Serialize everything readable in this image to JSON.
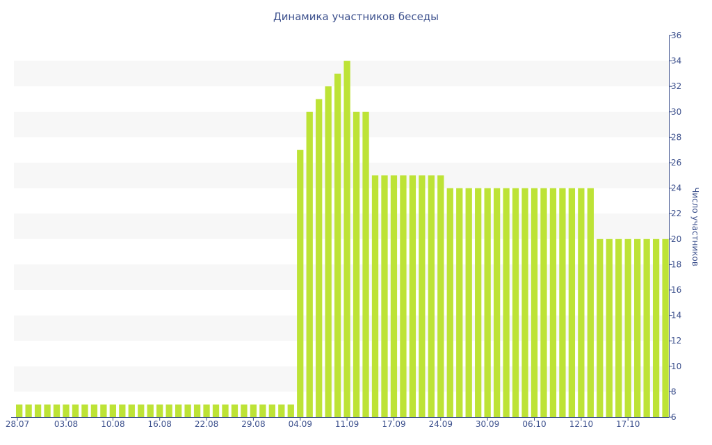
{
  "chart_data": {
    "type": "bar",
    "title": "Динамика участников беседы",
    "xlabel": "",
    "ylabel": "Число участников",
    "ylim": [
      6,
      36
    ],
    "y_ticks": [
      6,
      8,
      10,
      12,
      14,
      16,
      18,
      20,
      22,
      24,
      26,
      28,
      30,
      32,
      34,
      36
    ],
    "y_axis_position": "right",
    "grid": "alternating horizontal bands",
    "bar_color": "#bde336",
    "band_color": "#f7f7f7",
    "text_color": "#3b4f8c",
    "x_tick_labels": [
      "28.07",
      "03.08",
      "10.08",
      "16.08",
      "22.08",
      "29.08",
      "04.09",
      "11.09",
      "17.09",
      "24.09",
      "30.09",
      "06.10",
      "12.10",
      "17.10"
    ],
    "values": [
      7,
      7,
      7,
      7,
      7,
      7,
      7,
      7,
      7,
      7,
      7,
      7,
      7,
      7,
      7,
      7,
      7,
      7,
      7,
      7,
      7,
      7,
      7,
      7,
      7,
      7,
      7,
      7,
      7,
      7,
      27,
      30,
      31,
      32,
      33,
      34,
      30,
      30,
      25,
      25,
      25,
      25,
      25,
      25,
      25,
      25,
      24,
      24,
      24,
      24,
      24,
      24,
      24,
      24,
      24,
      24,
      24,
      24,
      24,
      24,
      24,
      24,
      20,
      20,
      20,
      20,
      20,
      20,
      20,
      20
    ]
  }
}
